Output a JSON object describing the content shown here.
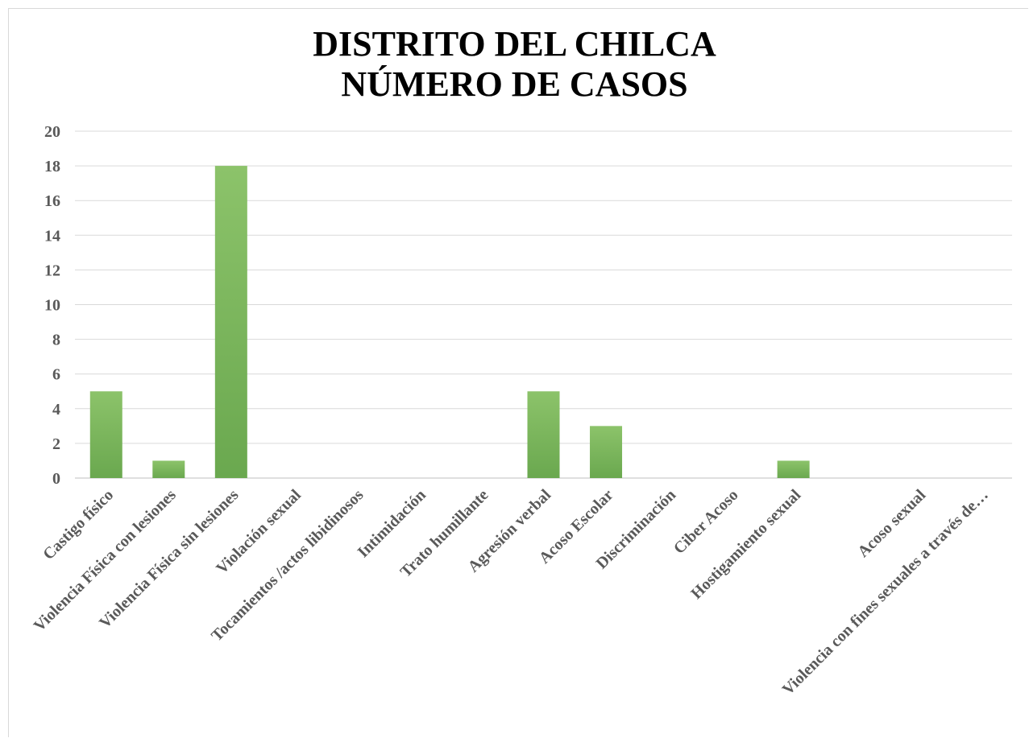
{
  "chart_data": {
    "type": "bar",
    "title_line1": "DISTRITO DEL CHILCA",
    "title_line2": "NÚMERO DE CASOS",
    "categories": [
      "Castigo físico",
      "Violencia Física con lesiones",
      "Violencia Física sin lesiones",
      "Violación sexual",
      "Tocamientos /actos libidinosos",
      "Intimidación",
      "Trato humillante",
      "Agresión verbal",
      "Acoso Escolar",
      "Discriminación",
      "Ciber Acoso",
      "Hostigamiento sexual",
      "",
      "Acoso sexual",
      "Violencia con fines sexuales a través de…"
    ],
    "values": [
      5,
      1,
      18,
      0,
      0,
      0,
      0,
      5,
      3,
      0,
      0,
      1,
      0,
      0,
      0
    ],
    "ylim": [
      0,
      20
    ],
    "yticks": [
      0,
      2,
      4,
      6,
      8,
      10,
      12,
      14,
      16,
      18,
      20
    ],
    "grid": true,
    "bar_color": "#6aa84f",
    "bar_color_top": "#8cc36a"
  }
}
